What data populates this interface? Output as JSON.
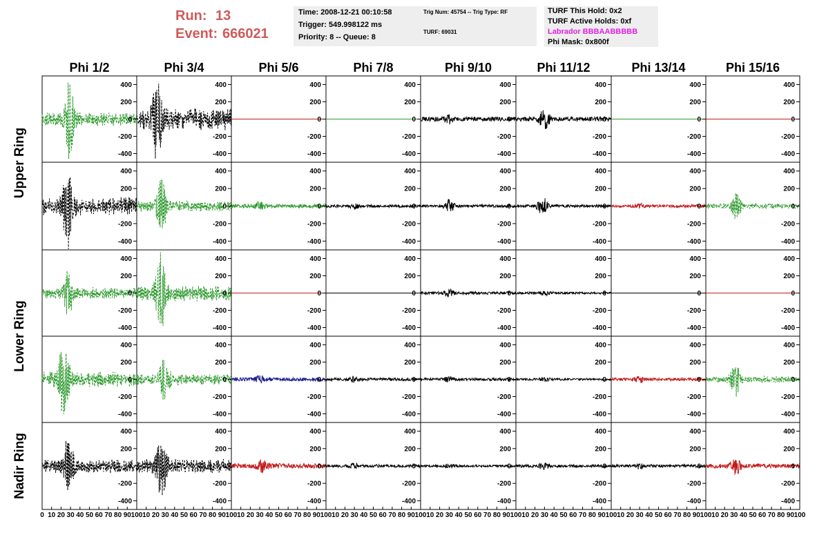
{
  "header": {
    "run_label": "Run:",
    "run_value": "13",
    "event_label": "Event:",
    "event_value": "666021",
    "time": "Time: 2008-12-21 00:10:58",
    "trigger": "Trigger: 549.998122 ms",
    "priority": "Priority: 8 -- Queue: 8",
    "trig_num": "Trig Num: 45754 -- Trig Type: RF",
    "turf": "TURF: 69031",
    "turf_hold": "TURF This Hold: 0x2",
    "turf_active": "TURF Active Holds: 0xf",
    "labrador": "Labrador BBBAABBBBB",
    "phi_mask": "Phi Mask: 0x800f"
  },
  "colors": {
    "green": "#2e9a2e",
    "black": "#000000",
    "red": "#c21a1a",
    "blue": "#1a1a8c",
    "header_red": "#d05a5a",
    "magenta": "#e020e0"
  },
  "chart_data": {
    "type": "line",
    "columns": [
      "Phi 1/2",
      "Phi 3/4",
      "Phi 5/6",
      "Phi 7/8",
      "Phi 9/10",
      "Phi 11/12",
      "Phi 13/14",
      "Phi 15/16"
    ],
    "row_labels": [
      {
        "text": "Upper Ring",
        "rows": [
          0,
          1
        ]
      },
      {
        "text": "Lower Ring",
        "rows": [
          2,
          3
        ]
      },
      {
        "text": "Nadir Ring",
        "rows": [
          4,
          4
        ]
      }
    ],
    "ylim": [
      -500,
      500
    ],
    "yticks": [
      400,
      200,
      0,
      -200,
      -400
    ],
    "xlim": [
      0,
      100
    ],
    "xticks": [
      0,
      10,
      20,
      30,
      40,
      50,
      60,
      70,
      80,
      90,
      100
    ],
    "panels": [
      [
        {
          "color": "green",
          "dash": true,
          "amp": 140,
          "peak": 470,
          "peak_at": 29,
          "noise": 0.0
        },
        {
          "color": "black",
          "dash": true,
          "amp": 220,
          "peak": 440,
          "peak_at": 22,
          "noise": 0.0
        },
        {
          "color": "red",
          "dash": false,
          "amp": 0,
          "peak": 0,
          "peak_at": 0,
          "noise": 0.0
        },
        {
          "color": "green",
          "dash": false,
          "amp": 0,
          "peak": 0,
          "peak_at": 0,
          "noise": 0.0
        },
        {
          "color": "black",
          "dash": false,
          "amp": 30,
          "peak": 40,
          "peak_at": 30,
          "noise": 1.0
        },
        {
          "color": "black",
          "dash": false,
          "amp": 30,
          "peak": 110,
          "peak_at": 30,
          "noise": 1.0
        },
        {
          "color": "green",
          "dash": false,
          "amp": 0,
          "peak": 0,
          "peak_at": 0,
          "noise": 0.0
        },
        {
          "color": "red",
          "dash": false,
          "amp": 0,
          "peak": 0,
          "peak_at": 0,
          "noise": 0.0
        }
      ],
      [
        {
          "color": "black",
          "dash": true,
          "amp": 180,
          "peak": 500,
          "peak_at": 27,
          "noise": 0.0
        },
        {
          "color": "green",
          "dash": true,
          "amp": 110,
          "peak": 300,
          "peak_at": 26,
          "noise": 0.0
        },
        {
          "color": "green",
          "dash": false,
          "amp": 25,
          "peak": 35,
          "peak_at": 30,
          "noise": 1.0
        },
        {
          "color": "black",
          "dash": false,
          "amp": 20,
          "peak": 25,
          "peak_at": 30,
          "noise": 1.0
        },
        {
          "color": "black",
          "dash": false,
          "amp": 20,
          "peak": 65,
          "peak_at": 30,
          "noise": 1.0
        },
        {
          "color": "black",
          "dash": false,
          "amp": 20,
          "peak": 100,
          "peak_at": 28,
          "noise": 1.0
        },
        {
          "color": "red",
          "dash": false,
          "amp": 20,
          "peak": 25,
          "peak_at": 30,
          "noise": 1.0
        },
        {
          "color": "green",
          "dash": true,
          "amp": 50,
          "peak": 170,
          "peak_at": 32,
          "noise": 0.0
        }
      ],
      [
        {
          "color": "green",
          "dash": true,
          "amp": 120,
          "peak": 260,
          "peak_at": 28,
          "noise": 0.0
        },
        {
          "color": "green",
          "dash": true,
          "amp": 160,
          "peak": 460,
          "peak_at": 25,
          "noise": 0.0
        },
        {
          "color": "red",
          "dash": false,
          "amp": 0,
          "peak": 0,
          "peak_at": 0,
          "noise": 0.0
        },
        {
          "color": "black",
          "dash": false,
          "amp": 0,
          "peak": 0,
          "peak_at": 0,
          "noise": 0.0
        },
        {
          "color": "black",
          "dash": false,
          "amp": 20,
          "peak": 30,
          "peak_at": 30,
          "noise": 1.0
        },
        {
          "color": "black",
          "dash": false,
          "amp": 15,
          "peak": 25,
          "peak_at": 30,
          "noise": 1.0
        },
        {
          "color": "black",
          "dash": false,
          "amp": 0,
          "peak": 0,
          "peak_at": 0,
          "noise": 0.0
        },
        {
          "color": "red",
          "dash": false,
          "amp": 0,
          "peak": 0,
          "peak_at": 0,
          "noise": 0.0
        }
      ],
      [
        {
          "color": "green",
          "dash": true,
          "amp": 160,
          "peak": 500,
          "peak_at": 23,
          "noise": 0.0
        },
        {
          "color": "green",
          "dash": true,
          "amp": 110,
          "peak": 250,
          "peak_at": 29,
          "noise": 0.0
        },
        {
          "color": "blue",
          "dash": false,
          "amp": 25,
          "peak": 30,
          "peak_at": 30,
          "noise": 1.0
        },
        {
          "color": "black",
          "dash": false,
          "amp": 20,
          "peak": 25,
          "peak_at": 30,
          "noise": 1.0
        },
        {
          "color": "black",
          "dash": false,
          "amp": 18,
          "peak": 25,
          "peak_at": 30,
          "noise": 1.0
        },
        {
          "color": "black",
          "dash": false,
          "amp": 15,
          "peak": 20,
          "peak_at": 30,
          "noise": 1.0
        },
        {
          "color": "red",
          "dash": false,
          "amp": 20,
          "peak": 25,
          "peak_at": 30,
          "noise": 1.0
        },
        {
          "color": "green",
          "dash": true,
          "amp": 70,
          "peak": 200,
          "peak_at": 31,
          "noise": 0.0
        }
      ],
      [
        {
          "color": "black",
          "dash": true,
          "amp": 140,
          "peak": 320,
          "peak_at": 28,
          "noise": 0.0
        },
        {
          "color": "black",
          "dash": true,
          "amp": 140,
          "peak": 360,
          "peak_at": 26,
          "noise": 0.0
        },
        {
          "color": "red",
          "dash": false,
          "amp": 35,
          "peak": 65,
          "peak_at": 33,
          "noise": 1.0
        },
        {
          "color": "black",
          "dash": false,
          "amp": 20,
          "peak": 25,
          "peak_at": 30,
          "noise": 1.0
        },
        {
          "color": "black",
          "dash": false,
          "amp": 15,
          "peak": 20,
          "peak_at": 30,
          "noise": 1.0
        },
        {
          "color": "black",
          "dash": false,
          "amp": 20,
          "peak": 40,
          "peak_at": 30,
          "noise": 1.0
        },
        {
          "color": "black",
          "dash": false,
          "amp": 20,
          "peak": 30,
          "peak_at": 30,
          "noise": 1.0
        },
        {
          "color": "red",
          "dash": false,
          "amp": 30,
          "peak": 90,
          "peak_at": 32,
          "noise": 1.0
        }
      ]
    ]
  }
}
